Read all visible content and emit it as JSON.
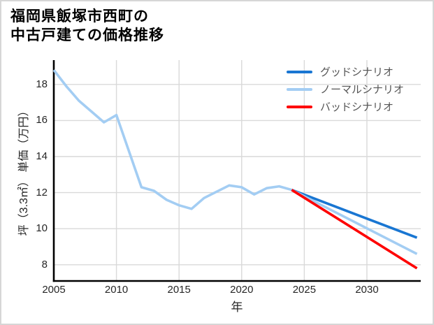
{
  "header": {
    "title_lines": [
      "福岡県飯塚市西町の",
      "中古戸建ての価格推移"
    ]
  },
  "chart_data": {
    "type": "line",
    "title": "福岡県飯塚市西町の中古戸建ての価格推移",
    "xlabel": "年",
    "ylabel": "坪（3.3㎡） 単価（万円）",
    "xlim": [
      2005,
      2034.3
    ],
    "ylim": [
      7.1,
      19.35
    ],
    "xticks": [
      2005,
      2010,
      2015,
      2020,
      2025,
      2030
    ],
    "yticks": [
      8,
      10,
      12,
      14,
      16,
      18
    ],
    "grid": true,
    "legend_position": "upper-right-inside",
    "colors": {
      "grid": "#d9d9d9",
      "axis": "#000000",
      "tick_text": "#262626",
      "legend_text": "#555555"
    },
    "series": [
      {
        "id": "history",
        "label": null,
        "color": "#a3cdf3",
        "x": [
          2005,
          2006,
          2007,
          2008,
          2009,
          2010,
          2011,
          2012,
          2013,
          2014,
          2015,
          2016,
          2017,
          2018,
          2019,
          2020,
          2021,
          2022,
          2023,
          2024
        ],
        "y": [
          18.8,
          17.9,
          17.1,
          16.5,
          15.9,
          16.3,
          14.3,
          12.3,
          12.1,
          11.6,
          11.3,
          11.1,
          11.7,
          12.05,
          12.4,
          12.3,
          11.9,
          12.25,
          12.35,
          12.15
        ]
      },
      {
        "id": "good",
        "label": "グッドシナリオ",
        "color": "#1976d2",
        "x": [
          2024,
          2034
        ],
        "y": [
          12.15,
          9.5
        ]
      },
      {
        "id": "normal",
        "label": "ノーマルシナリオ",
        "color": "#a3cdf3",
        "x": [
          2024,
          2034
        ],
        "y": [
          12.15,
          8.6
        ]
      },
      {
        "id": "bad",
        "label": "バッドシナリオ",
        "color": "#fe0000",
        "x": [
          2024,
          2034
        ],
        "y": [
          12.15,
          7.8
        ]
      }
    ]
  }
}
